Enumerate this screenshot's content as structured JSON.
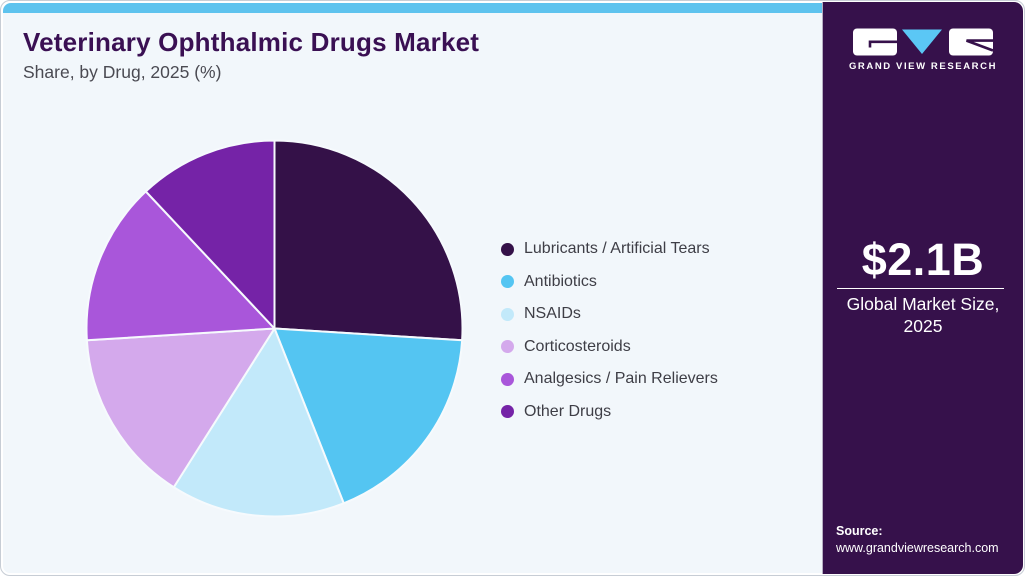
{
  "header": {
    "title": "Veterinary Ophthalmic Drugs Market",
    "subtitle": "Share, by Drug, 2025 (%)"
  },
  "chart_data": {
    "type": "pie",
    "title": "Veterinary Ophthalmic Drugs Market Share, by Drug, 2025 (%)",
    "unit": "%",
    "start_angle_deg": 0,
    "direction": "clockwise",
    "legend_position": "right",
    "slices": [
      {
        "label": "Lubricants / Artificial Tears",
        "value": 26,
        "color": "#341148"
      },
      {
        "label": "Antibiotics",
        "value": 18,
        "color": "#54c5f2"
      },
      {
        "label": "NSAIDs",
        "value": 15,
        "color": "#c2e9fa"
      },
      {
        "label": "Corticosteroids",
        "value": 15,
        "color": "#d4a9ec"
      },
      {
        "label": "Analgesics / Pain Relievers",
        "value": 14,
        "color": "#a956da"
      },
      {
        "label": "Other Drugs",
        "value": 12,
        "color": "#7523a7"
      }
    ]
  },
  "sidebar": {
    "brand": "GRAND VIEW RESEARCH",
    "market_size": "$2.1B",
    "caption_line1": "Global Market Size,",
    "caption_line2": "2025",
    "source_label": "Source:",
    "source_url": "www.grandviewresearch.com"
  },
  "colors": {
    "topbar": "#5ec3ee",
    "main_bg": "#f2f7fb",
    "sidebar_bg": "#36114b",
    "title": "#3a1053",
    "subtitle": "#4a4a52",
    "legend_text": "#3e3e46",
    "logo_v": "#5bc7f5",
    "slice_separator": "#f6fafd"
  }
}
